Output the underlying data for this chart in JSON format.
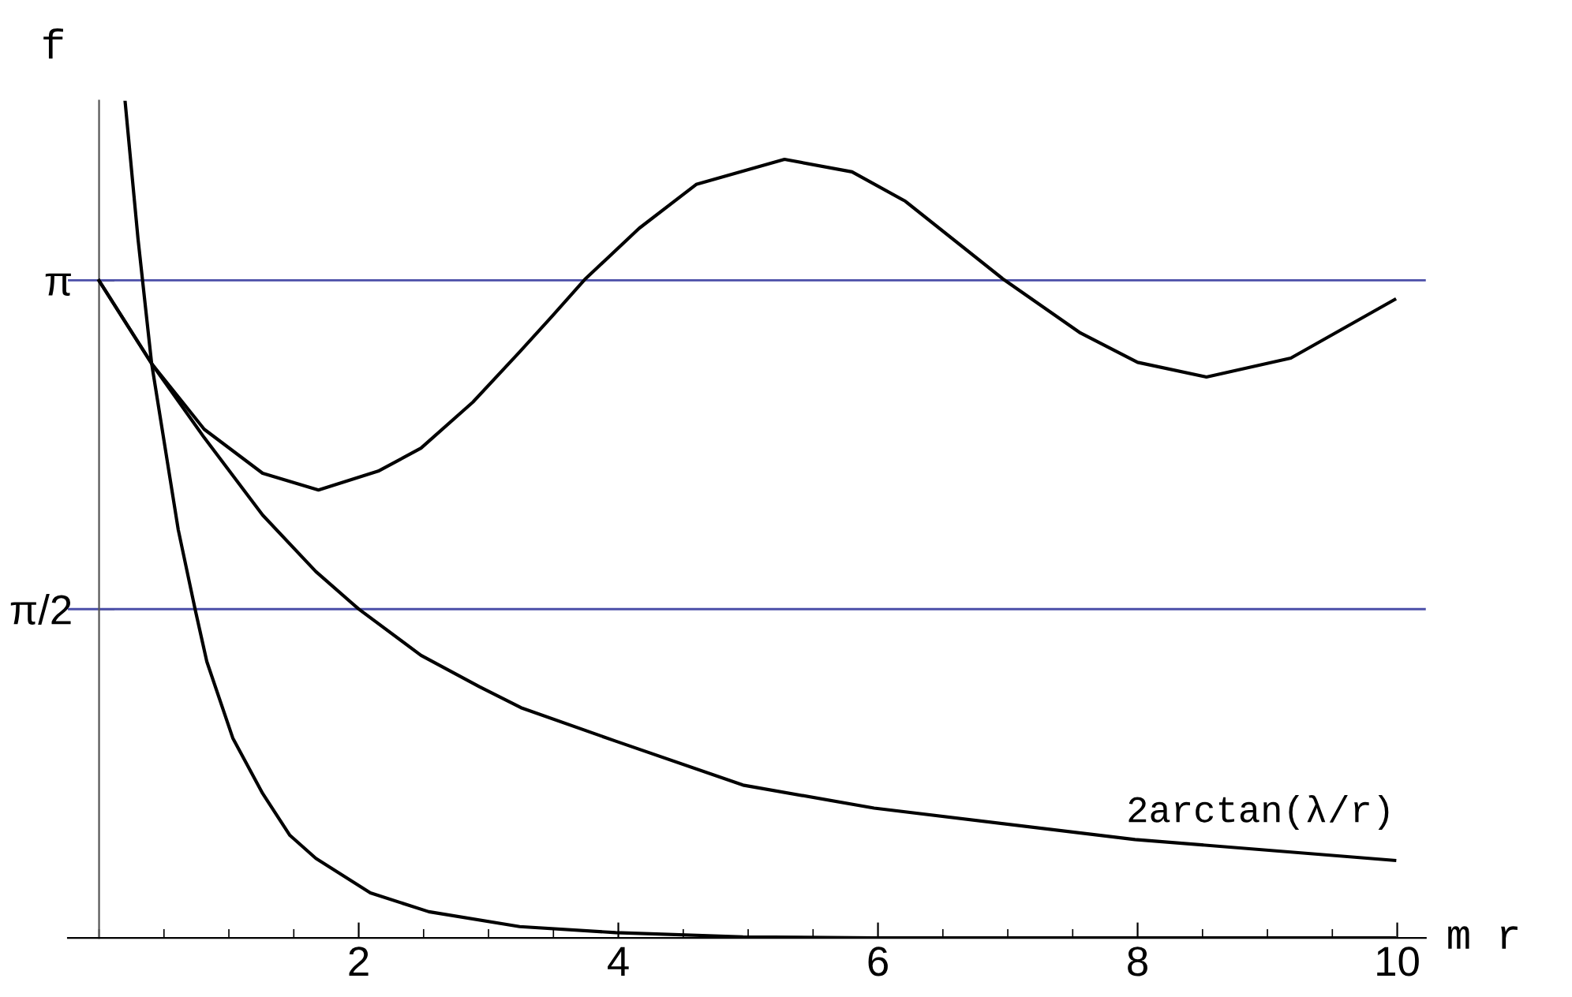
{
  "chart_data": {
    "type": "line",
    "xlabel": "m r",
    "ylabel": "f",
    "xlim": [
      -0.24,
      10.22
    ],
    "ylim": [
      0,
      4.0
    ],
    "xticks": [
      2,
      4,
      6,
      8,
      10
    ],
    "yticks": [
      {
        "value": 1.5708,
        "label": "π/2"
      },
      {
        "value": 3.1416,
        "label": "π"
      }
    ],
    "grid": false,
    "legend": false,
    "marker": "none",
    "line_style": "solid",
    "ref_lines": [
      {
        "axis": "y",
        "value": 3.1416,
        "color": "#4b4fa8"
      },
      {
        "axis": "y",
        "value": 1.5708,
        "color": "#4b4fa8"
      }
    ],
    "series": [
      {
        "color": "#000000",
        "x": [
          0,
          0.405,
          0.81,
          1.26,
          1.69,
          2.15,
          2.48,
          2.88,
          3.24,
          3.49,
          3.74,
          4.16,
          4.6,
          5.28,
          5.8,
          6.21,
          6.97,
          7.56,
          8.0,
          8.53,
          9.18,
          9.98
        ],
        "values": [
          3.14,
          2.744,
          2.43,
          2.22,
          2.14,
          2.23,
          2.34,
          2.56,
          2.8,
          2.97,
          3.145,
          3.39,
          3.6,
          3.72,
          3.66,
          3.52,
          3.145,
          2.89,
          2.75,
          2.68,
          2.77,
          3.05
        ]
      },
      {
        "name": "2arctan(λ/r)",
        "color": "#000000",
        "x": [
          0,
          0.405,
          0.81,
          1.26,
          1.67,
          2.0,
          2.48,
          2.93,
          3.25,
          3.98,
          4.96,
          5.97,
          7.98,
          9.98
        ],
        "values": [
          3.14,
          2.744,
          2.39,
          2.02,
          1.75,
          1.571,
          1.35,
          1.2,
          1.1,
          0.94,
          0.73,
          0.62,
          0.47,
          0.37
        ]
      },
      {
        "color": "#000000",
        "x": [
          0.2,
          0.3,
          0.405,
          0.61,
          0.74,
          0.83,
          1.03,
          1.26,
          1.47,
          1.67,
          2.09,
          2.54,
          3.24,
          3.98,
          4.96,
          5.97,
          8.0,
          9.98
        ],
        "values": [
          4.0,
          3.34,
          2.744,
          1.95,
          1.57,
          1.32,
          0.955,
          0.69,
          0.49,
          0.38,
          0.215,
          0.125,
          0.054,
          0.025,
          0.005,
          0.0,
          0.0,
          0.0
        ]
      }
    ]
  }
}
